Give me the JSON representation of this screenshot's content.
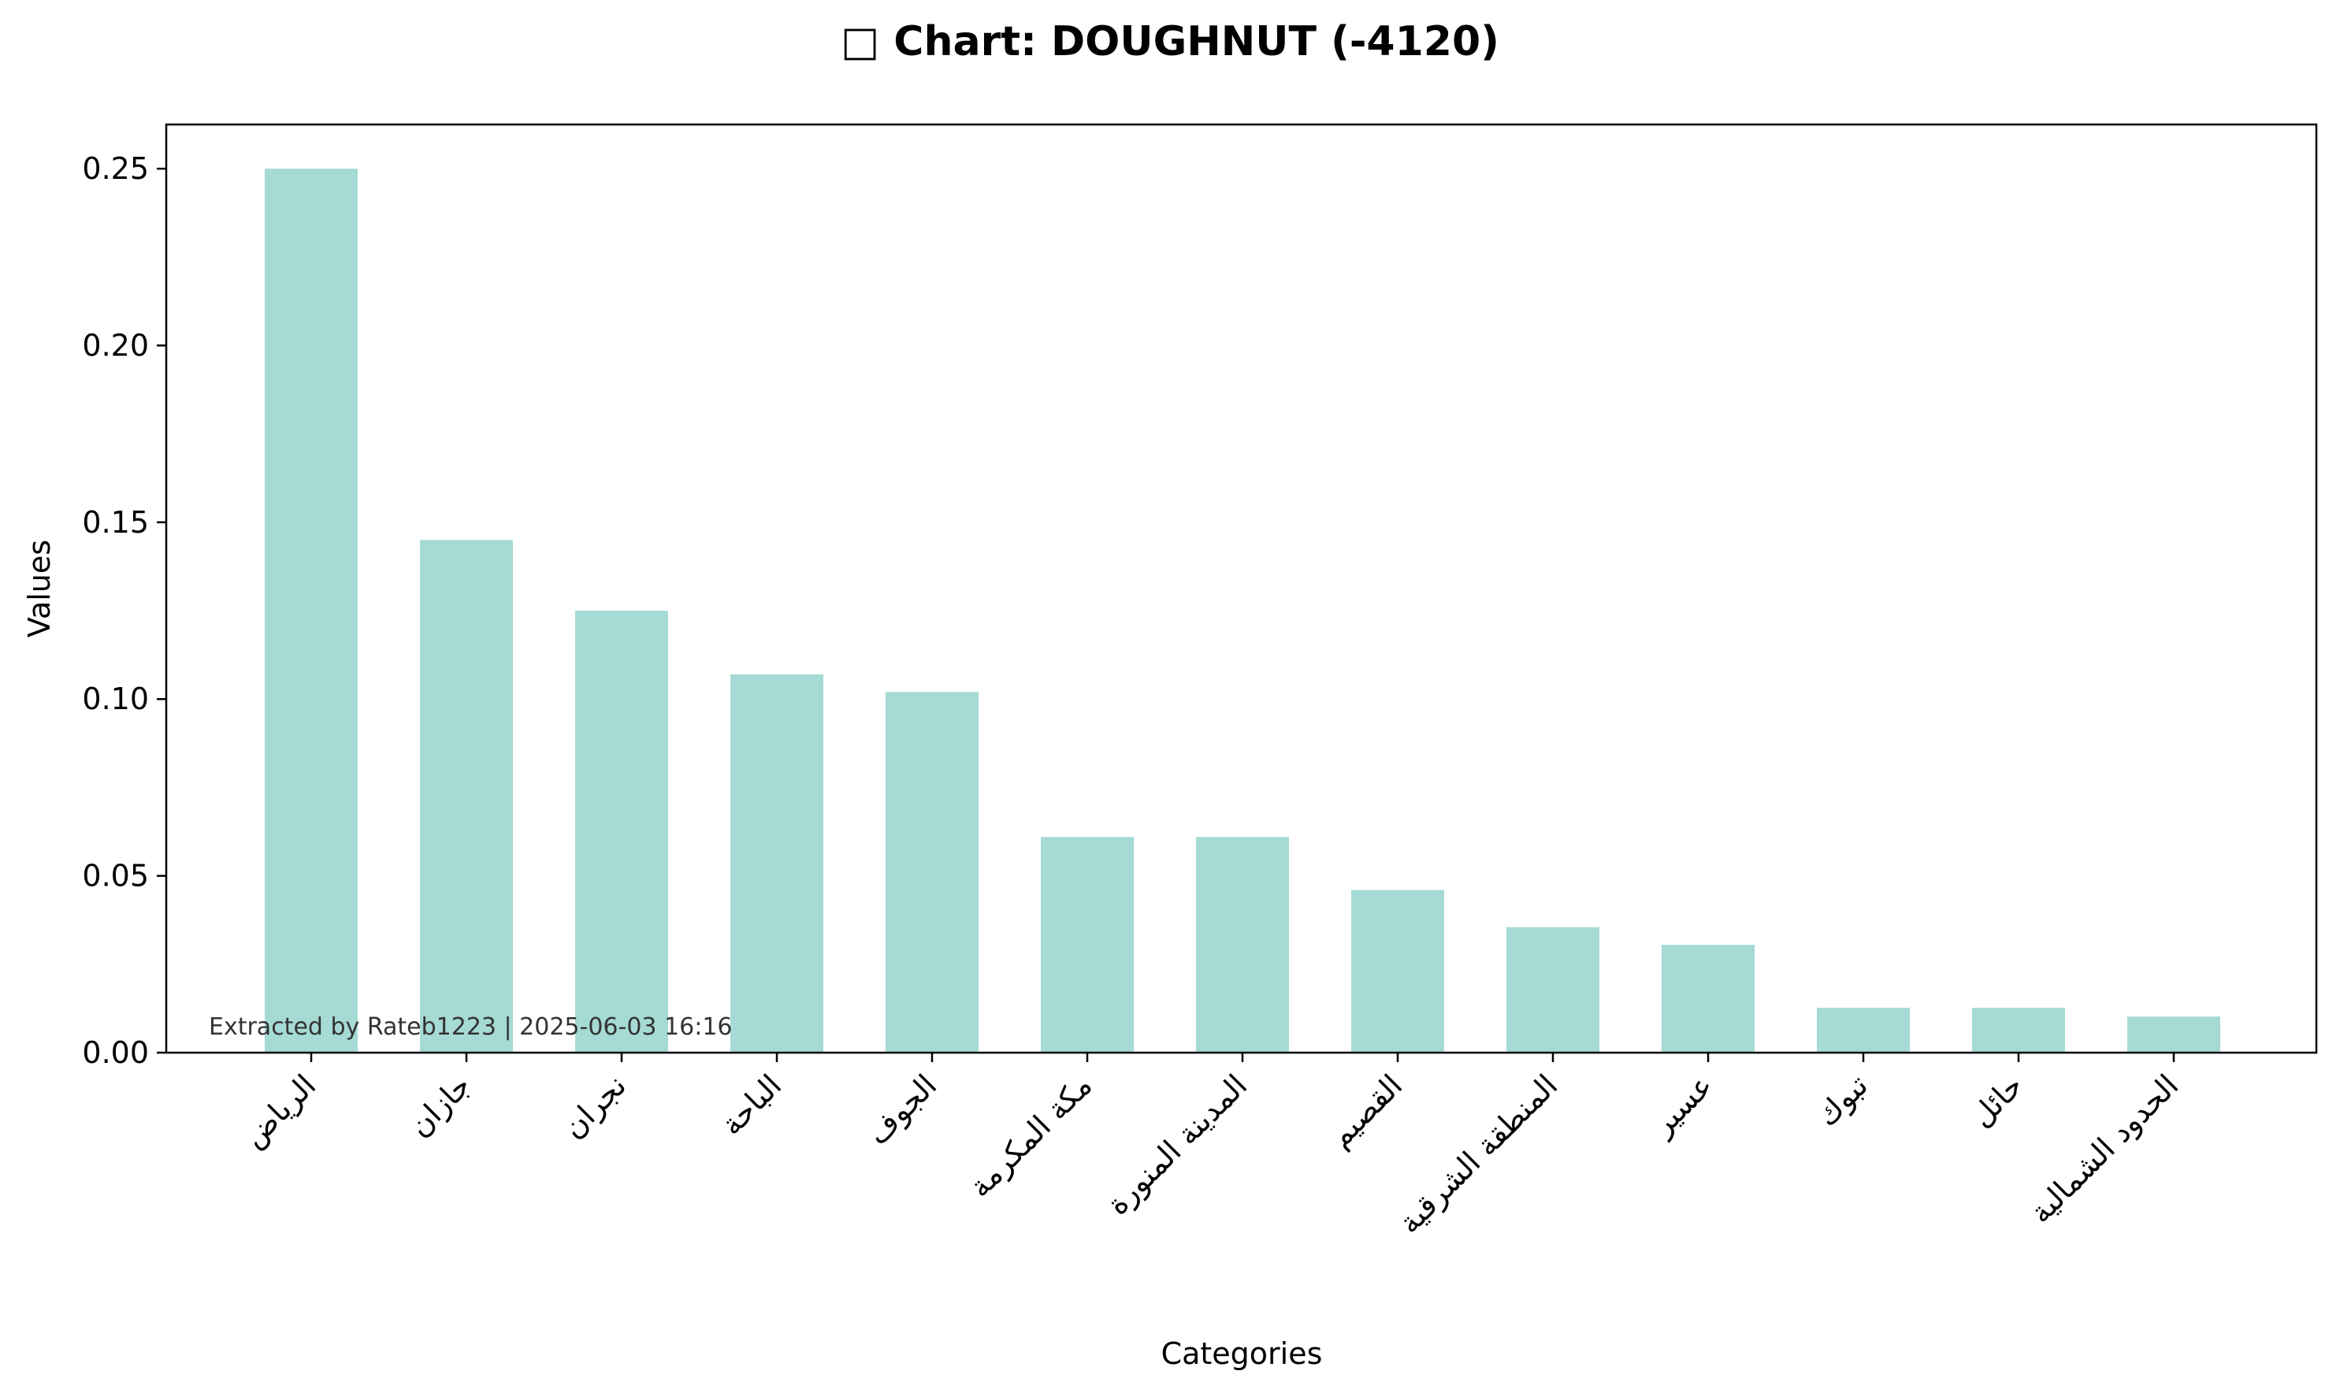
{
  "chart_data": {
    "type": "bar",
    "title": "□ Chart: DOUGHNUT (-4120)",
    "xlabel": "Categories",
    "ylabel": "Values",
    "categories": [
      "الرياض",
      "جازان",
      "نجران",
      "الباحة",
      "الجوف",
      "مكة المكرمة",
      "المدينة المنورة",
      "القصيم",
      "المنطقة الشرقية",
      "عسير",
      "تبوك",
      "حائل",
      "الحدود الشمالية"
    ],
    "values": [
      0.25,
      0.145,
      0.125,
      0.107,
      0.102,
      0.061,
      0.061,
      0.046,
      0.0355,
      0.0305,
      0.0127,
      0.0127,
      0.0102
    ],
    "ylim": [
      0,
      0.2625
    ],
    "yticks": [
      "0.00",
      "0.05",
      "0.10",
      "0.15",
      "0.20",
      "0.25"
    ],
    "grid": false,
    "bar_color": "#a5dbd4",
    "annotation": "Extracted by Rateb1223 | 2025-06-03 16:16"
  }
}
